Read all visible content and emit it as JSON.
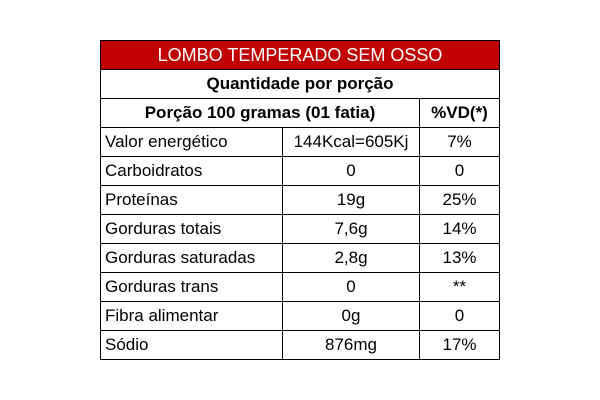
{
  "title": "LOMBO TEMPERADO SEM OSSO",
  "subtitle": "Quantidade por porção",
  "header": {
    "portion": "Porção 100 gramas (01 fatia)",
    "dv": "%VD(*)"
  },
  "rows": [
    {
      "label": "Valor energético",
      "amount": "144Kcal=605Kj",
      "dv": "7%"
    },
    {
      "label": "Carboidratos",
      "amount": "0",
      "dv": "0"
    },
    {
      "label": "Proteínas",
      "amount": "19g",
      "dv": "25%"
    },
    {
      "label": "Gorduras totais",
      "amount": "7,6g",
      "dv": "14%"
    },
    {
      "label": "Gorduras saturadas",
      "amount": "2,8g",
      "dv": "13%"
    },
    {
      "label": "Gorduras trans",
      "amount": "0",
      "dv": "**"
    },
    {
      "label": "Fibra alimentar",
      "amount": "0g",
      "dv": "0"
    },
    {
      "label": "Sódio",
      "amount": "876mg",
      "dv": "17%"
    }
  ],
  "colors": {
    "title_bg": "#c00000",
    "title_text": "#ffffff",
    "border": "#000000"
  }
}
